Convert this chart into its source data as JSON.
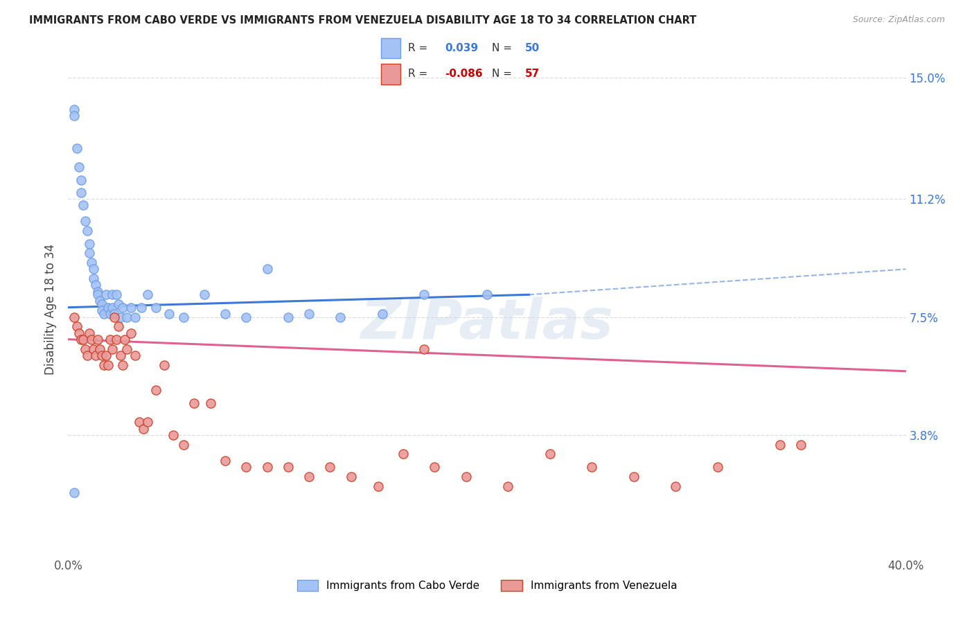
{
  "title": "IMMIGRANTS FROM CABO VERDE VS IMMIGRANTS FROM VENEZUELA DISABILITY AGE 18 TO 34 CORRELATION CHART",
  "source": "Source: ZipAtlas.com",
  "ylabel": "Disability Age 18 to 34",
  "yticks": [
    0.0,
    0.038,
    0.075,
    0.112,
    0.15
  ],
  "ytick_labels": [
    "",
    "3.8%",
    "7.5%",
    "11.2%",
    "15.0%"
  ],
  "xlim": [
    0.0,
    0.4
  ],
  "ylim": [
    0.0,
    0.155
  ],
  "cabo_verde_color": "#a4c2f4",
  "cabo_verde_edge_color": "#6d9eeb",
  "venezuela_color": "#ea9999",
  "venezuela_edge_color": "#cc4125",
  "cabo_verde_line_color": "#3c78d8",
  "venezuela_line_color": "#e06090",
  "cabo_verde_scatter": {
    "x": [
      0.003,
      0.003,
      0.004,
      0.005,
      0.006,
      0.006,
      0.007,
      0.008,
      0.009,
      0.01,
      0.01,
      0.011,
      0.012,
      0.012,
      0.013,
      0.014,
      0.014,
      0.015,
      0.016,
      0.016,
      0.017,
      0.018,
      0.019,
      0.02,
      0.021,
      0.021,
      0.022,
      0.023,
      0.024,
      0.025,
      0.026,
      0.028,
      0.03,
      0.032,
      0.035,
      0.038,
      0.042,
      0.048,
      0.055,
      0.065,
      0.075,
      0.085,
      0.095,
      0.105,
      0.115,
      0.13,
      0.15,
      0.17,
      0.2,
      0.003
    ],
    "y": [
      0.14,
      0.138,
      0.128,
      0.122,
      0.118,
      0.114,
      0.11,
      0.105,
      0.102,
      0.098,
      0.095,
      0.092,
      0.09,
      0.087,
      0.085,
      0.083,
      0.082,
      0.08,
      0.079,
      0.077,
      0.076,
      0.082,
      0.078,
      0.076,
      0.082,
      0.078,
      0.076,
      0.082,
      0.079,
      0.075,
      0.078,
      0.075,
      0.078,
      0.075,
      0.078,
      0.082,
      0.078,
      0.076,
      0.075,
      0.082,
      0.076,
      0.075,
      0.09,
      0.075,
      0.076,
      0.075,
      0.076,
      0.082,
      0.082,
      0.02
    ]
  },
  "venezuela_scatter": {
    "x": [
      0.003,
      0.004,
      0.005,
      0.006,
      0.007,
      0.008,
      0.009,
      0.01,
      0.011,
      0.012,
      0.013,
      0.014,
      0.015,
      0.016,
      0.017,
      0.018,
      0.019,
      0.02,
      0.021,
      0.022,
      0.023,
      0.024,
      0.025,
      0.026,
      0.027,
      0.028,
      0.03,
      0.032,
      0.034,
      0.036,
      0.038,
      0.042,
      0.046,
      0.05,
      0.055,
      0.06,
      0.068,
      0.075,
      0.085,
      0.095,
      0.105,
      0.115,
      0.125,
      0.135,
      0.148,
      0.16,
      0.175,
      0.19,
      0.21,
      0.23,
      0.25,
      0.27,
      0.29,
      0.31,
      0.17,
      0.34,
      0.35
    ],
    "y": [
      0.075,
      0.072,
      0.07,
      0.068,
      0.068,
      0.065,
      0.063,
      0.07,
      0.068,
      0.065,
      0.063,
      0.068,
      0.065,
      0.063,
      0.06,
      0.063,
      0.06,
      0.068,
      0.065,
      0.075,
      0.068,
      0.072,
      0.063,
      0.06,
      0.068,
      0.065,
      0.07,
      0.063,
      0.042,
      0.04,
      0.042,
      0.052,
      0.06,
      0.038,
      0.035,
      0.048,
      0.048,
      0.03,
      0.028,
      0.028,
      0.028,
      0.025,
      0.028,
      0.025,
      0.022,
      0.032,
      0.028,
      0.025,
      0.022,
      0.032,
      0.028,
      0.025,
      0.022,
      0.028,
      0.065,
      0.035,
      0.035
    ]
  },
  "background_color": "#ffffff",
  "grid_color": "#dddddd",
  "watermark": "ZIPatlas"
}
